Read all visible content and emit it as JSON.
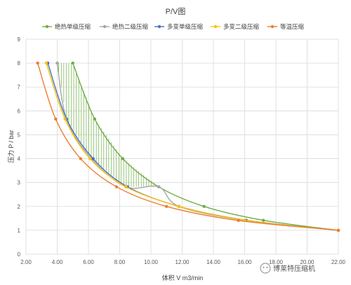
{
  "chart_data": {
    "type": "line",
    "title": "P/V图",
    "xlabel": "体积 V m3/min",
    "ylabel": "压力 P / bar",
    "xlim": [
      2,
      22
    ],
    "ylim": [
      0,
      9
    ],
    "x_ticks": [
      "2.00",
      "4.00",
      "6.00",
      "8.00",
      "10.00",
      "12.00",
      "14.00",
      "16.00",
      "18.00",
      "20.00",
      "22.00"
    ],
    "y_ticks": [
      "0",
      "1",
      "2",
      "3",
      "4",
      "5",
      "6",
      "7",
      "8",
      "9"
    ],
    "grid": true,
    "legend_position": "top",
    "series": [
      {
        "name": "绝热单级压缩",
        "color": "#70ad47",
        "points": [
          [
            22,
            1
          ],
          [
            17.2,
            1.42
          ],
          [
            13.4,
            2.0
          ],
          [
            10.5,
            2.82
          ],
          [
            8.2,
            4.0
          ],
          [
            6.4,
            5.66
          ],
          [
            5.0,
            8.0
          ]
        ]
      },
      {
        "name": "绝热二级压缩",
        "color": "#a5a5a5",
        "points": [
          [
            22,
            1
          ],
          [
            16.0,
            1.42
          ],
          [
            11.8,
            2.0
          ],
          [
            10.5,
            2.82
          ],
          [
            8.4,
            2.82
          ],
          [
            6.2,
            4.0
          ],
          [
            4.6,
            5.66
          ],
          [
            4.0,
            8.0
          ]
        ]
      },
      {
        "name": "多变单级压缩",
        "color": "#4472c4",
        "points": [
          [
            22,
            1
          ],
          [
            16.1,
            1.42
          ],
          [
            11.8,
            2.0
          ],
          [
            8.5,
            2.82
          ],
          [
            6.3,
            4.0
          ],
          [
            4.6,
            5.66
          ],
          [
            3.4,
            8.0
          ]
        ]
      },
      {
        "name": "多变二级压缩",
        "color": "#ffc000",
        "points": [
          [
            22,
            1
          ],
          [
            16.0,
            1.42
          ],
          [
            11.8,
            2.0
          ],
          [
            8.4,
            2.82
          ],
          [
            6.1,
            4.0
          ],
          [
            4.5,
            5.66
          ],
          [
            3.3,
            8.0
          ]
        ]
      },
      {
        "name": "等温压缩",
        "color": "#ed7d31",
        "points": [
          [
            22,
            1
          ],
          [
            15.6,
            1.41
          ],
          [
            11.0,
            2.0
          ],
          [
            7.8,
            2.82
          ],
          [
            5.5,
            4.0
          ],
          [
            3.9,
            5.66
          ],
          [
            2.75,
            8.0
          ]
        ]
      }
    ],
    "hatched_region": {
      "between": [
        "绝热单级压缩",
        "绝热二级压缩"
      ],
      "color": "#70ad47"
    }
  },
  "watermark": {
    "text": "博莱特压缩机"
  }
}
